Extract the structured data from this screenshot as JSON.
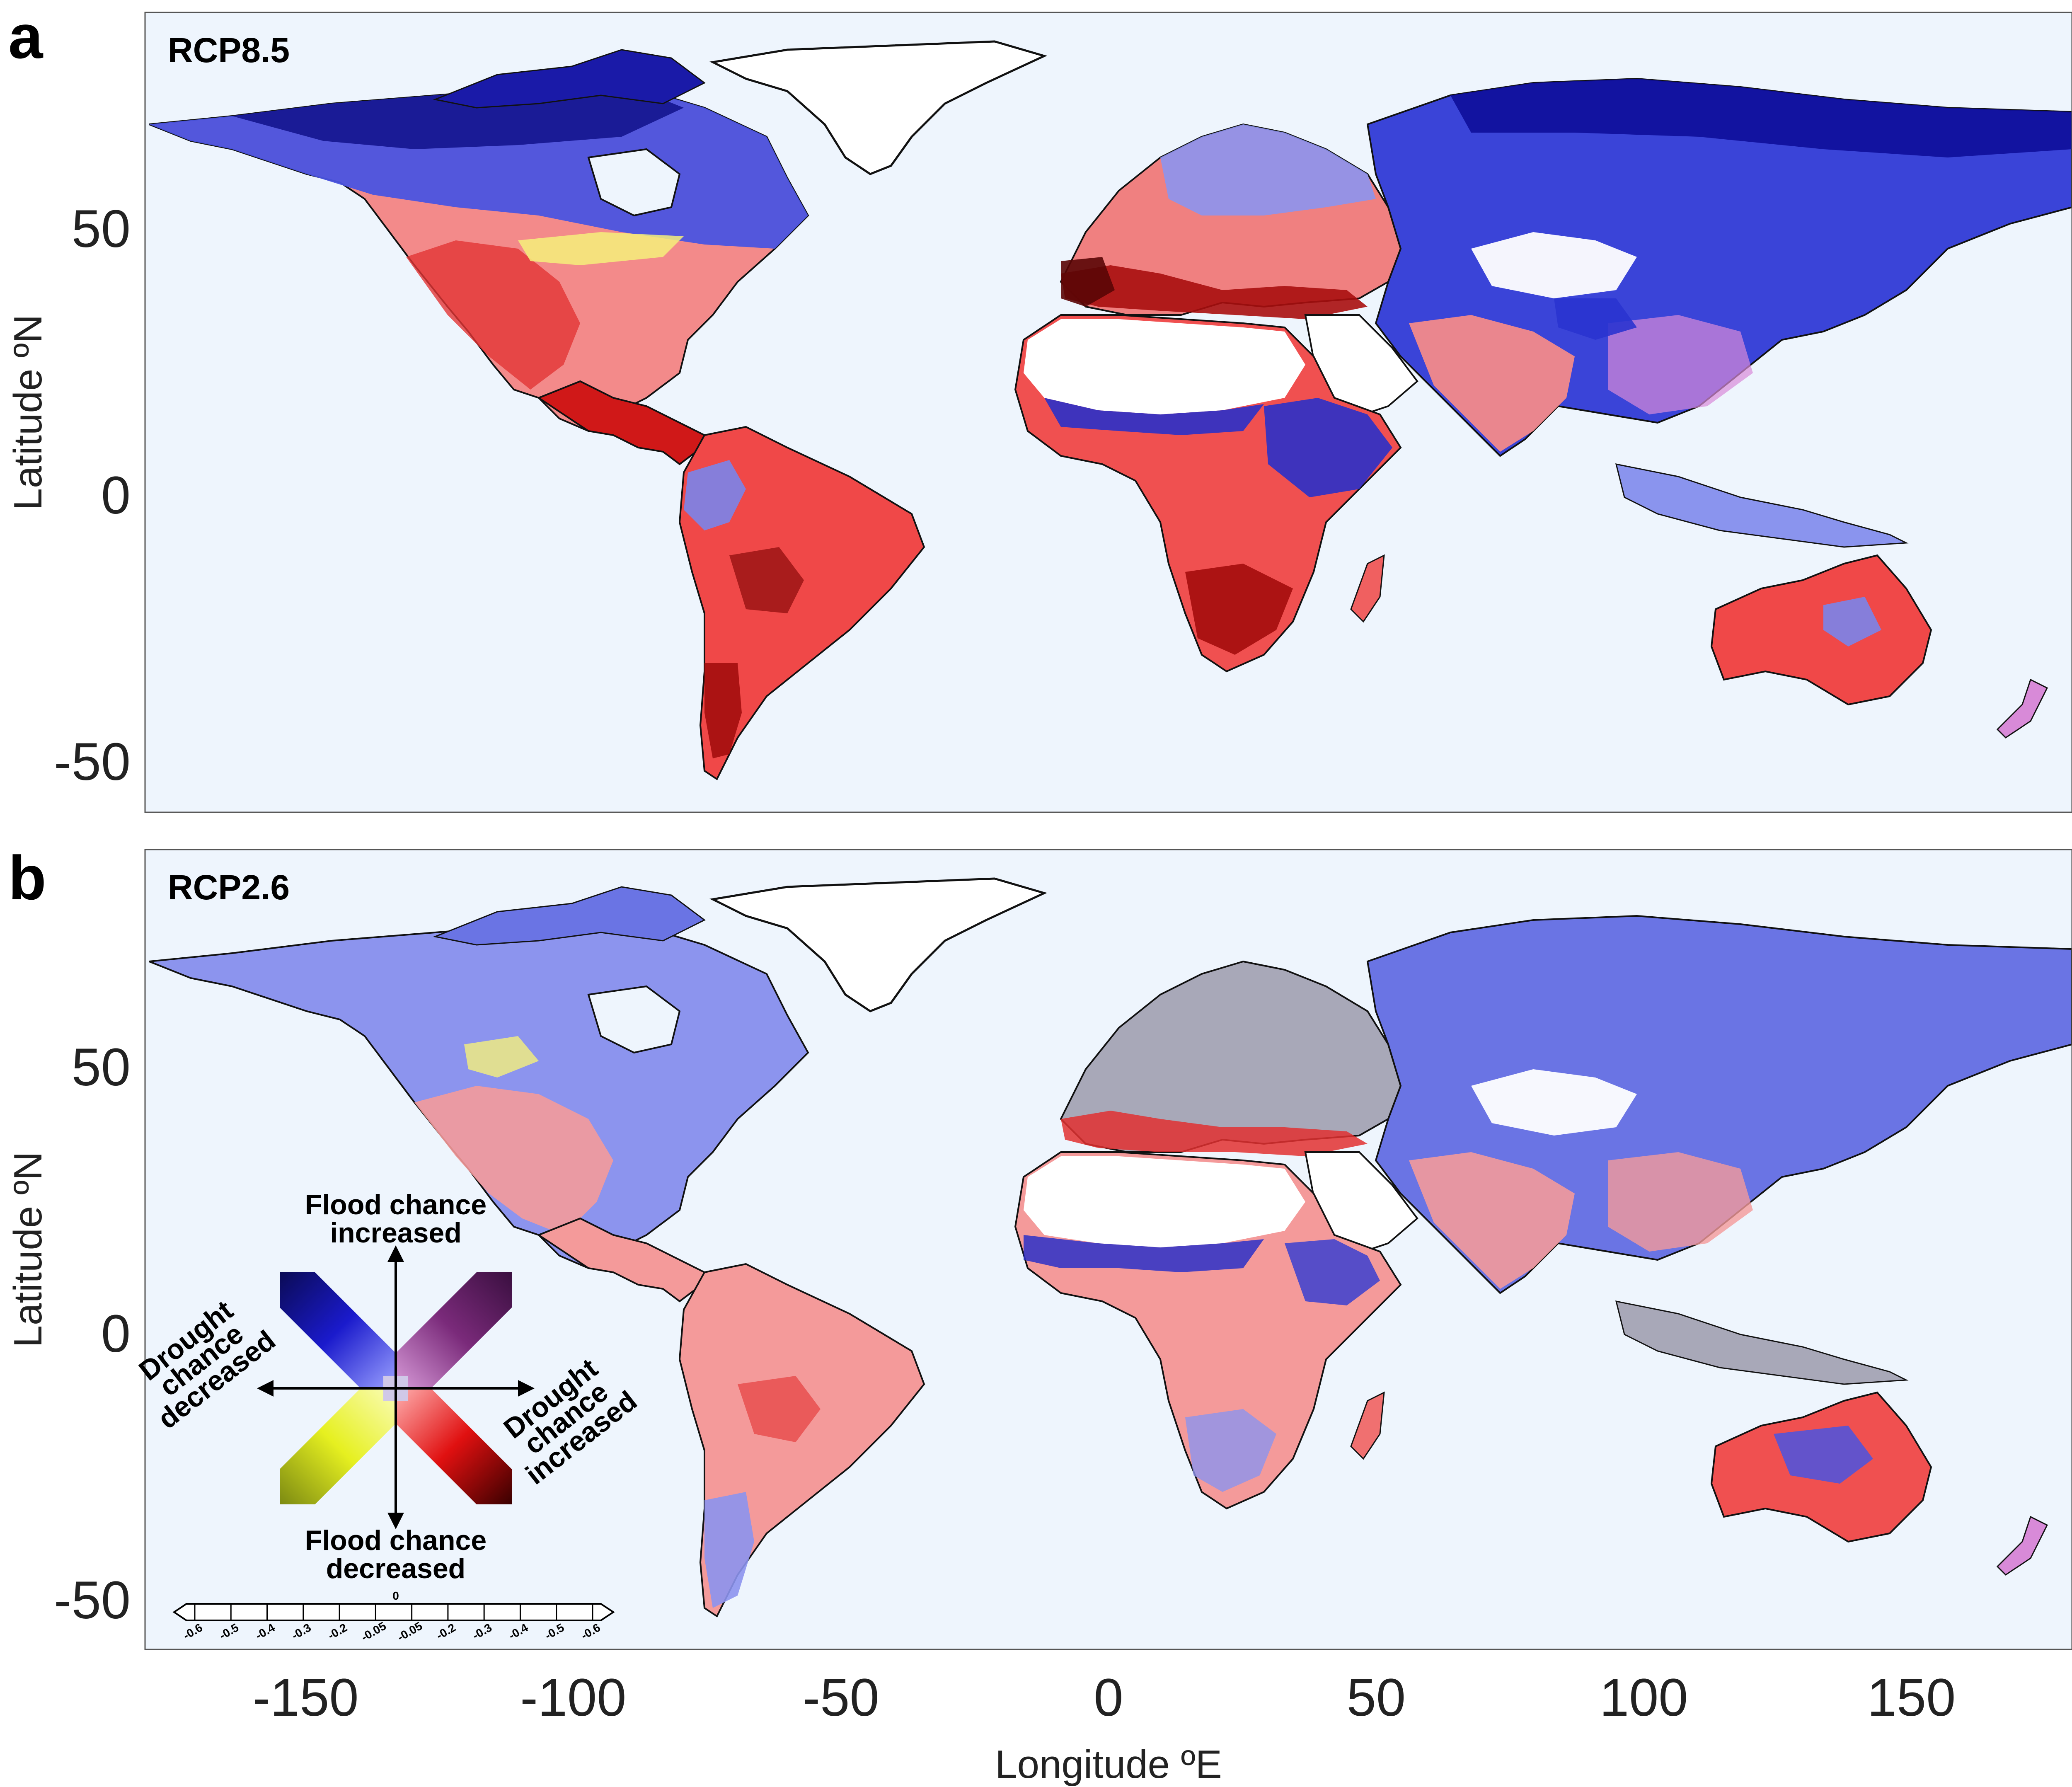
{
  "panels": [
    {
      "letter": "a",
      "scenario": "RCP8.5"
    },
    {
      "letter": "b",
      "scenario": "RCP2.6"
    }
  ],
  "axes": {
    "x_label": "Longitude ºE",
    "y_label": "Latitude ºN",
    "x_ticks": [
      "-150",
      "-100",
      "-50",
      "0",
      "50",
      "100",
      "150"
    ],
    "y_ticks": [
      "50",
      "0",
      "-50"
    ],
    "x_range": [
      -180,
      180
    ],
    "y_range": [
      -60,
      90
    ]
  },
  "legend": {
    "flood_up_line1": "Flood chance",
    "flood_up_line2": "increased",
    "flood_down_line1": "Flood chance",
    "flood_down_line2": "decreased",
    "drought_down_line1": "Drought",
    "drought_down_line2": "chance",
    "drought_down_line3": "decreased",
    "drought_up_line1": "Drought",
    "drought_up_line2": "chance",
    "drought_up_line3": "increased",
    "scale_zero": "0",
    "scale_ticks": [
      "-0.6",
      "-0.5",
      "-0.4",
      "-0.3",
      "-0.2",
      "-0.05",
      "-0.05",
      "-0.2",
      "-0.3",
      "-0.4",
      "-0.5",
      "-0.6"
    ]
  },
  "colors": {
    "ocean": "#eef5fd",
    "flood_increase": "#2233dd",
    "drought_increase": "#dd2222",
    "both_increase": "#8a3a8a",
    "both_decrease": "#cccc22",
    "no_change": "#aaaaaa"
  }
}
